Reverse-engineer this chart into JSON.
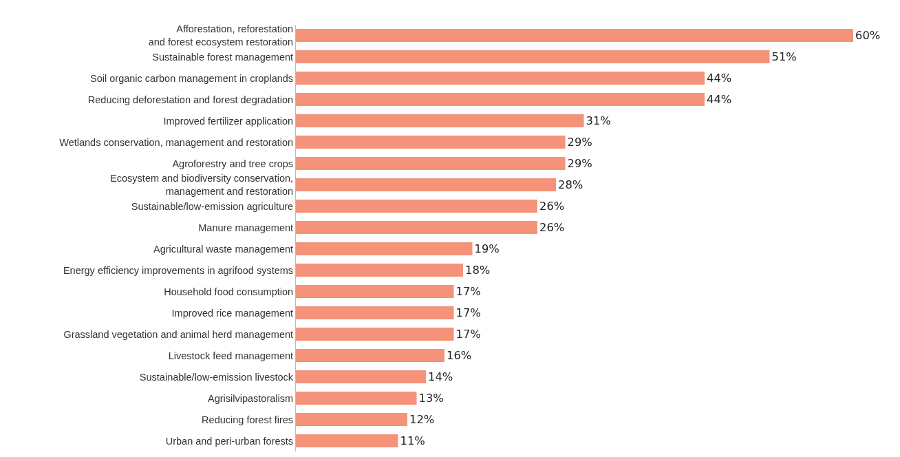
{
  "chart_data": {
    "type": "bar",
    "orientation": "horizontal",
    "categories": [
      "Afforestation, reforestation\nand forest ecosystem restoration",
      "Sustainable forest management",
      "Soil organic carbon management in croplands",
      "Reducing deforestation and forest degradation",
      "Improved fertilizer application",
      "Wetlands conservation, management and restoration",
      "Agroforestry and tree crops",
      "Ecosystem and biodiversity conservation,\nmanagement and restoration",
      "Sustainable/low-emission agriculture",
      "Manure management",
      "Agricultural waste management",
      "Energy efficiency improvements in agrifood systems",
      "Household food consumption",
      "Improved rice management",
      "Grassland vegetation and animal herd management",
      "Livestock feed management",
      "Sustainable/low-emission livestock",
      "Agrisilvipastoralism",
      "Reducing forest fires",
      "Urban and peri-urban forests"
    ],
    "values": [
      60,
      51,
      44,
      44,
      31,
      29,
      29,
      28,
      26,
      26,
      19,
      18,
      17,
      17,
      17,
      16,
      14,
      13,
      12,
      11
    ],
    "value_labels": [
      "60%",
      "51%",
      "44%",
      "44%",
      "31%",
      "29%",
      "29%",
      "28%",
      "26%",
      "26%",
      "19%",
      "18%",
      "17%",
      "17%",
      "17%",
      "16%",
      "14%",
      "13%",
      "12%",
      "11%"
    ],
    "color": "#f4937a"
  }
}
